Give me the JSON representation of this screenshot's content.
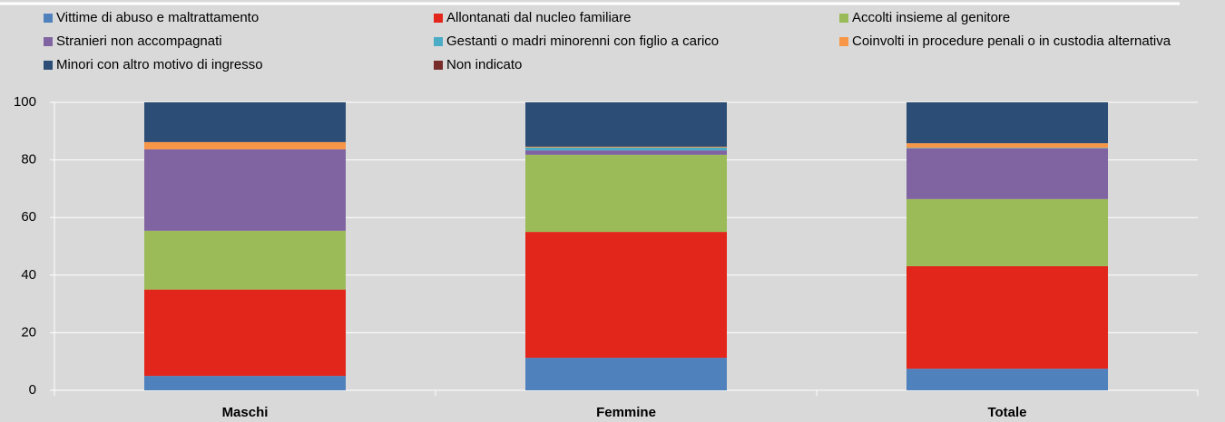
{
  "chart_data": {
    "type": "stacked_bar",
    "categories": [
      "Maschi",
      "Femmine",
      "Totale"
    ],
    "series": [
      {
        "name": "Vittime di abuso e maltrattamento",
        "color": "#4f81bd",
        "values": [
          5.0,
          11.3,
          7.5
        ]
      },
      {
        "name": "Allontanati dal nucleo familiare",
        "color": "#e3261b",
        "values": [
          30.0,
          43.7,
          35.6
        ]
      },
      {
        "name": "Accolti insieme al genitore",
        "color": "#9bbb59",
        "values": [
          20.4,
          26.8,
          23.3
        ]
      },
      {
        "name": "Stranieri non accompagnati",
        "color": "#8064a2",
        "values": [
          28.3,
          1.5,
          17.6
        ]
      },
      {
        "name": "Gestanti o madri minorenni con figlio a carico",
        "color": "#4bacc6",
        "values": [
          0,
          1.0,
          0.2
        ]
      },
      {
        "name": "Coinvolti in procedure penali o in custodia alternativa",
        "color": "#f79646",
        "values": [
          2.5,
          0.3,
          1.6
        ]
      },
      {
        "name": "Minori con altro motivo di ingresso",
        "color": "#2c4d75",
        "values": [
          13.8,
          15.4,
          14.2
        ]
      },
      {
        "name": "Non indicato",
        "color": "#772c2a",
        "values": [
          0,
          0,
          0
        ]
      }
    ],
    "ylim": [
      0,
      100
    ],
    "yticks": [
      0,
      20,
      40,
      60,
      80,
      100
    ],
    "grid": true
  }
}
